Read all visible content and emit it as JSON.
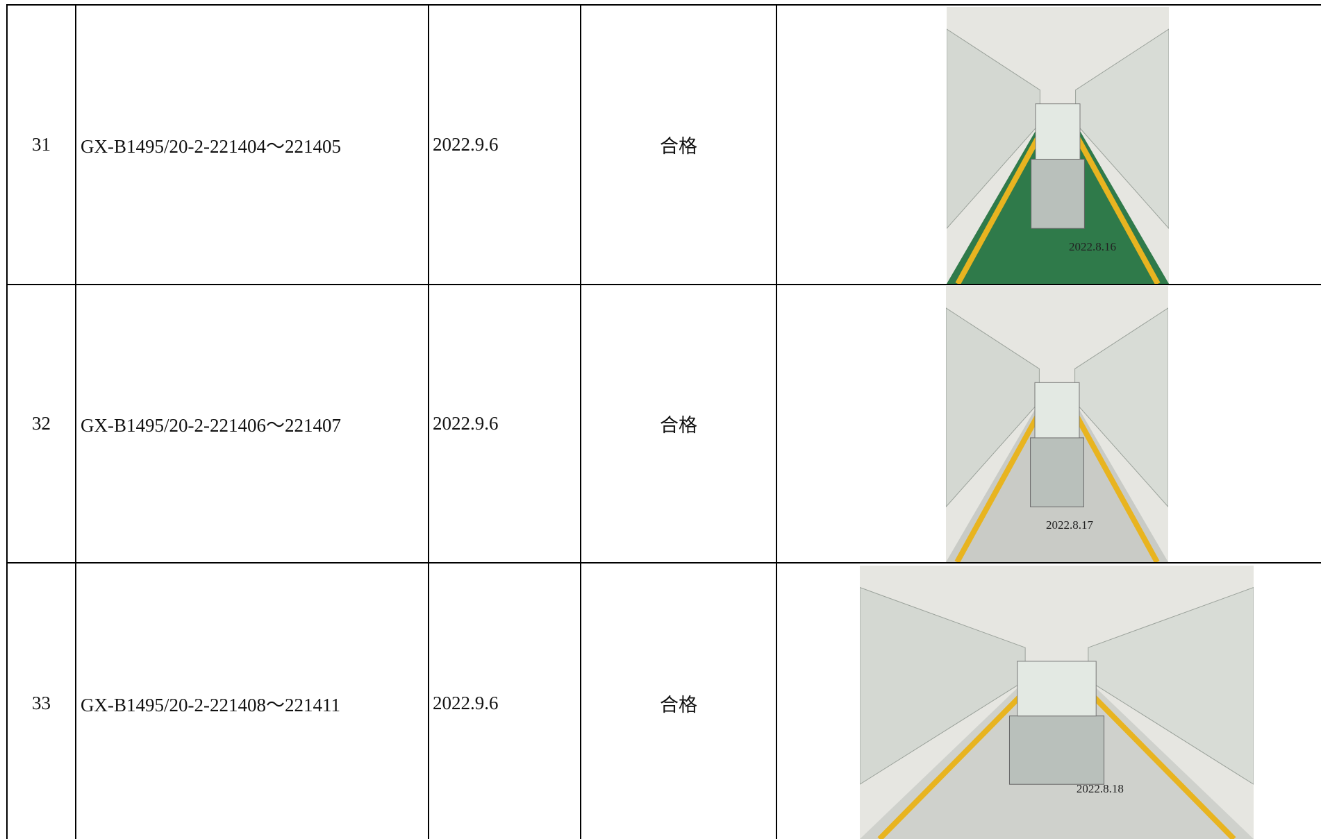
{
  "table": {
    "rows": [
      {
        "no": "31",
        "model": "GX-B1495/20-2-221404～221405",
        "date": "2022.9.6",
        "result": "合格",
        "photo_stamp": "2022.8.16"
      },
      {
        "no": "32",
        "model": "GX-B1495/20-2-221406～221407",
        "date": "2022.9.6",
        "result": "合格",
        "photo_stamp": "2022.8.17"
      },
      {
        "no": "33",
        "model": "GX-B1495/20-2-221408～221411",
        "date": "2022.9.6",
        "result": "合格",
        "photo_stamp": "2022.8.18"
      }
    ]
  }
}
